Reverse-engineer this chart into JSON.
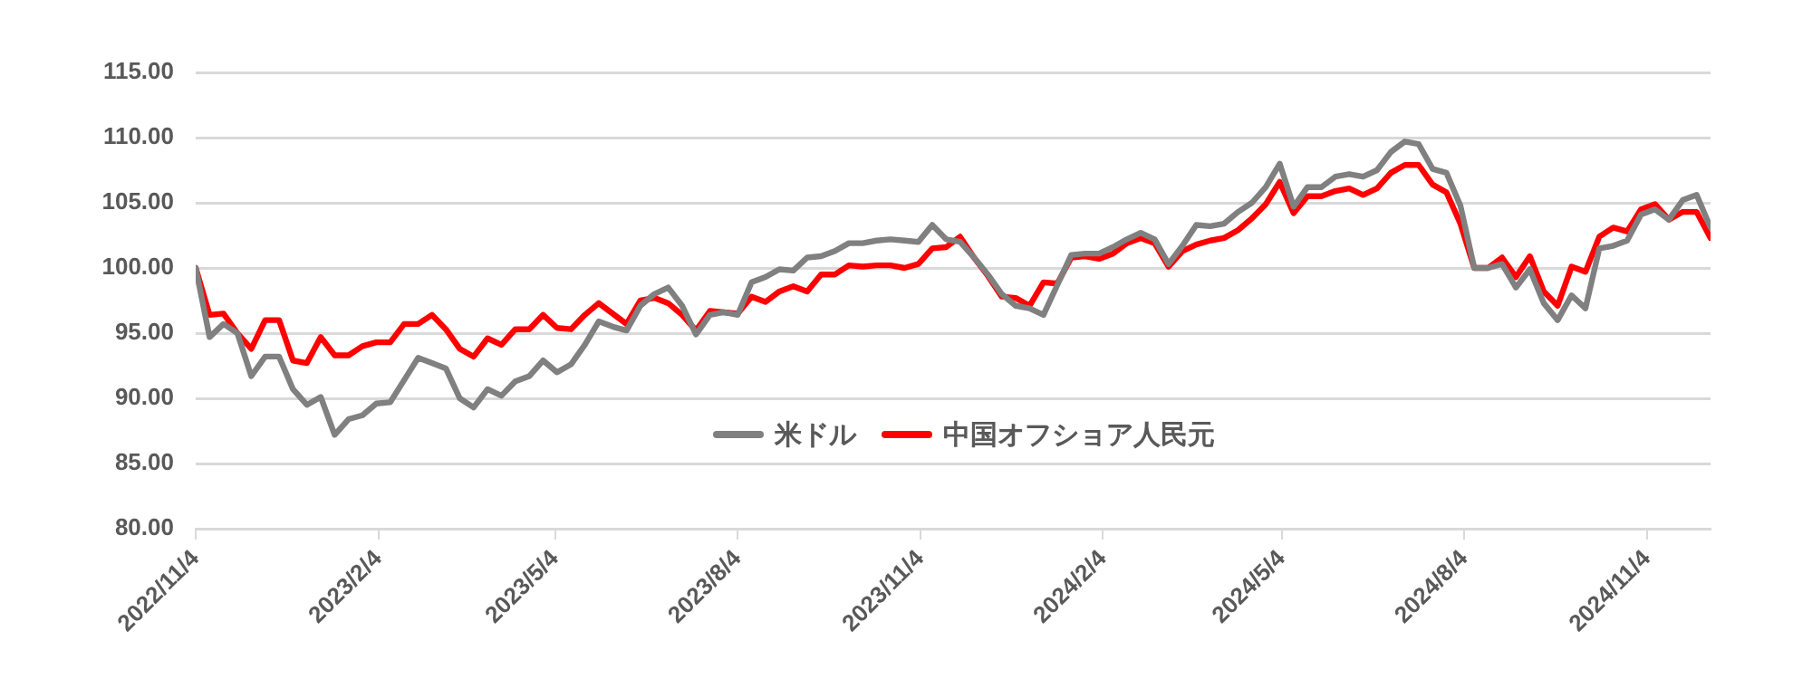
{
  "chart_data": {
    "type": "line",
    "x": [
      "2022-11-04",
      "2022-11-11",
      "2022-11-18",
      "2022-11-25",
      "2022-12-02",
      "2022-12-09",
      "2022-12-16",
      "2022-12-23",
      "2022-12-30",
      "2023-01-06",
      "2023-01-13",
      "2023-01-20",
      "2023-01-27",
      "2023-02-03",
      "2023-02-10",
      "2023-02-17",
      "2023-02-24",
      "2023-03-03",
      "2023-03-10",
      "2023-03-17",
      "2023-03-24",
      "2023-03-31",
      "2023-04-07",
      "2023-04-14",
      "2023-04-21",
      "2023-04-28",
      "2023-05-05",
      "2023-05-12",
      "2023-05-19",
      "2023-05-26",
      "2023-06-02",
      "2023-06-09",
      "2023-06-16",
      "2023-06-23",
      "2023-06-30",
      "2023-07-07",
      "2023-07-14",
      "2023-07-21",
      "2023-07-28",
      "2023-08-04",
      "2023-08-11",
      "2023-08-18",
      "2023-08-25",
      "2023-09-01",
      "2023-09-08",
      "2023-09-15",
      "2023-09-22",
      "2023-09-29",
      "2023-10-06",
      "2023-10-13",
      "2023-10-20",
      "2023-10-27",
      "2023-11-03",
      "2023-11-10",
      "2023-11-17",
      "2023-11-24",
      "2023-12-01",
      "2023-12-08",
      "2023-12-15",
      "2023-12-22",
      "2023-12-29",
      "2024-01-05",
      "2024-01-12",
      "2024-01-19",
      "2024-01-26",
      "2024-02-02",
      "2024-02-09",
      "2024-02-16",
      "2024-02-23",
      "2024-03-01",
      "2024-03-08",
      "2024-03-15",
      "2024-03-22",
      "2024-03-29",
      "2024-04-05",
      "2024-04-12",
      "2024-04-19",
      "2024-04-26",
      "2024-05-03",
      "2024-05-10",
      "2024-05-17",
      "2024-05-24",
      "2024-05-31",
      "2024-06-07",
      "2024-06-14",
      "2024-06-21",
      "2024-06-28",
      "2024-07-05",
      "2024-07-12",
      "2024-07-19",
      "2024-07-26",
      "2024-08-02",
      "2024-08-09",
      "2024-08-16",
      "2024-08-23",
      "2024-08-30",
      "2024-09-06",
      "2024-09-13",
      "2024-09-20",
      "2024-09-27",
      "2024-10-04",
      "2024-10-11",
      "2024-10-18",
      "2024-10-25",
      "2024-11-01",
      "2024-11-08",
      "2024-11-15",
      "2024-11-22",
      "2024-11-29",
      "2024-12-06"
    ],
    "series": [
      {
        "name": "米ドル",
        "color": "#808080",
        "values": [
          100,
          94.7,
          95.7,
          95.0,
          91.7,
          93.2,
          93.2,
          90.7,
          89.5,
          90.1,
          87.2,
          88.4,
          88.7,
          89.6,
          89.7,
          91.4,
          93.1,
          92.7,
          92.3,
          90.0,
          89.3,
          90.7,
          90.2,
          91.3,
          91.7,
          92.9,
          92.0,
          92.6,
          94.1,
          95.9,
          95.5,
          95.2,
          97.1,
          98.0,
          98.5,
          97.1,
          94.9,
          96.4,
          96.6,
          96.4,
          98.9,
          99.3,
          99.9,
          99.8,
          100.8,
          100.9,
          101.3,
          101.9,
          101.9,
          102.1,
          102.2,
          102.1,
          102.0,
          103.3,
          102.2,
          102.0,
          100.8,
          99.5,
          98.0,
          97.1,
          96.9,
          96.4,
          98.7,
          101.0,
          101.1,
          101.1,
          101.6,
          102.2,
          102.7,
          102.2,
          100.3,
          101.7,
          103.3,
          103.2,
          103.4,
          104.3,
          105.0,
          106.2,
          108.0,
          104.7,
          106.2,
          106.2,
          107.0,
          107.2,
          107.0,
          107.5,
          108.9,
          109.7,
          109.5,
          107.6,
          107.3,
          104.8,
          100.0,
          100.0,
          100.3,
          98.5,
          99.9,
          97.3,
          96.0,
          97.9,
          96.9,
          101.5,
          101.7,
          102.1,
          104.1,
          104.5,
          103.7,
          105.2,
          105.6,
          103.1
        ]
      },
      {
        "name": "中国オフショア人民元",
        "color": "#ff0000",
        "values": [
          100,
          96.4,
          96.5,
          95.0,
          93.8,
          96.0,
          96.0,
          92.9,
          92.7,
          94.7,
          93.3,
          93.3,
          94.0,
          94.3,
          94.3,
          95.7,
          95.7,
          96.4,
          95.3,
          93.8,
          93.2,
          94.6,
          94.1,
          95.3,
          95.3,
          96.4,
          95.4,
          95.3,
          96.4,
          97.3,
          96.5,
          95.7,
          97.5,
          97.7,
          97.3,
          96.4,
          95.2,
          96.7,
          96.6,
          96.5,
          97.8,
          97.4,
          98.2,
          98.6,
          98.2,
          99.5,
          99.5,
          100.2,
          100.1,
          100.2,
          100.2,
          100.0,
          100.3,
          101.5,
          101.6,
          102.4,
          100.8,
          99.4,
          97.8,
          97.7,
          97.1,
          98.9,
          98.8,
          100.8,
          100.9,
          100.7,
          101.1,
          101.9,
          102.3,
          101.9,
          100.1,
          101.3,
          101.8,
          102.1,
          102.3,
          102.9,
          103.8,
          104.9,
          106.6,
          104.2,
          105.5,
          105.5,
          105.9,
          106.1,
          105.6,
          106.1,
          107.3,
          107.9,
          107.9,
          106.4,
          105.8,
          103.4,
          100.0,
          100.0,
          100.8,
          99.3,
          100.9,
          98.2,
          97.1,
          100.1,
          99.7,
          102.4,
          103.1,
          102.8,
          104.5,
          104.9,
          103.7,
          104.3,
          104.3,
          102.3
        ]
      }
    ],
    "xlim": [
      "2022-11-04",
      "2024-12-06"
    ],
    "xticks": [
      {
        "value": "2022-11-04",
        "label": "2022/11/4"
      },
      {
        "value": "2023-02-04",
        "label": "2023/2/4"
      },
      {
        "value": "2023-05-04",
        "label": "2023/5/4"
      },
      {
        "value": "2023-08-04",
        "label": "2023/8/4"
      },
      {
        "value": "2023-11-04",
        "label": "2023/11/4"
      },
      {
        "value": "2024-02-04",
        "label": "2024/2/4"
      },
      {
        "value": "2024-05-04",
        "label": "2024/5/4"
      },
      {
        "value": "2024-08-04",
        "label": "2024/8/4"
      },
      {
        "value": "2024-11-04",
        "label": "2024/11/4"
      }
    ],
    "ylim": [
      80,
      115
    ],
    "yticks": [
      {
        "value": 80,
        "label": "80.00"
      },
      {
        "value": 85,
        "label": "85.00"
      },
      {
        "value": 90,
        "label": "90.00"
      },
      {
        "value": 95,
        "label": "95.00"
      },
      {
        "value": 100,
        "label": "100.00"
      },
      {
        "value": 105,
        "label": "105.00"
      },
      {
        "value": 110,
        "label": "110.00"
      },
      {
        "value": 115,
        "label": "115.00"
      }
    ],
    "grid": "y",
    "legend": "bottom",
    "marker": "none",
    "line_style": "solid"
  }
}
